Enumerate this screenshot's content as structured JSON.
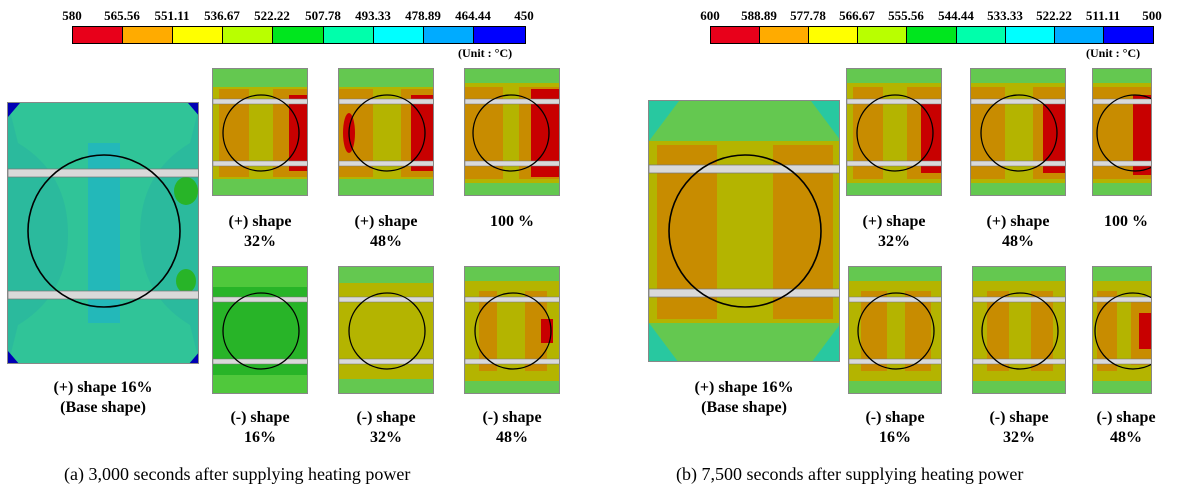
{
  "colors": {
    "scale": [
      "#e8001a",
      "#ffab00",
      "#ffff00",
      "#b9ff00",
      "#00e61e",
      "#00ffab",
      "#00ffff",
      "#00abff",
      "#0000ff"
    ],
    "field": {
      "hot": "#c80000",
      "warm": "#c88c00",
      "mid": "#b4b400",
      "cool": "#64c850",
      "teal": "#28c8a0",
      "green": "#28b428",
      "blue": "#0000b4",
      "strip": "#d9d9d9"
    }
  },
  "panels": [
    {
      "id": "a",
      "scale_ticks": [
        "580",
        "565.56",
        "551.11",
        "536.67",
        "522.22",
        "507.78",
        "493.33",
        "478.89",
        "464.44",
        "450"
      ],
      "unit": "(Unit : °C)",
      "caption": "(a) 3,000 seconds after supplying heating power",
      "base_label": [
        "(+) shape 16%",
        "(Base shape)"
      ],
      "top_labels": [
        [
          "(+) shape",
          "32%"
        ],
        [
          "(+) shape",
          "48%"
        ],
        [
          "100 %",
          ""
        ]
      ],
      "bottom_labels": [
        [
          "(-) shape",
          "16%"
        ],
        [
          "(-) shape",
          "32%"
        ],
        [
          "(-) shape",
          "48%"
        ]
      ]
    },
    {
      "id": "b",
      "scale_ticks": [
        "600",
        "588.89",
        "577.78",
        "566.67",
        "555.56",
        "544.44",
        "533.33",
        "522.22",
        "511.11",
        "500"
      ],
      "unit": "(Unit : °C)",
      "caption": "(b) 7,500 seconds after supplying heating power",
      "base_label": [
        "(+) shape 16%",
        "(Base shape)"
      ],
      "top_labels": [
        [
          "(+) shape",
          "32%"
        ],
        [
          "(+) shape",
          "48%"
        ],
        [
          "100 %",
          ""
        ]
      ],
      "bottom_labels": [
        [
          "(-) shape",
          "16%"
        ],
        [
          "(-) shape",
          "32%"
        ],
        [
          "(-) shape",
          "48%"
        ]
      ]
    }
  ]
}
